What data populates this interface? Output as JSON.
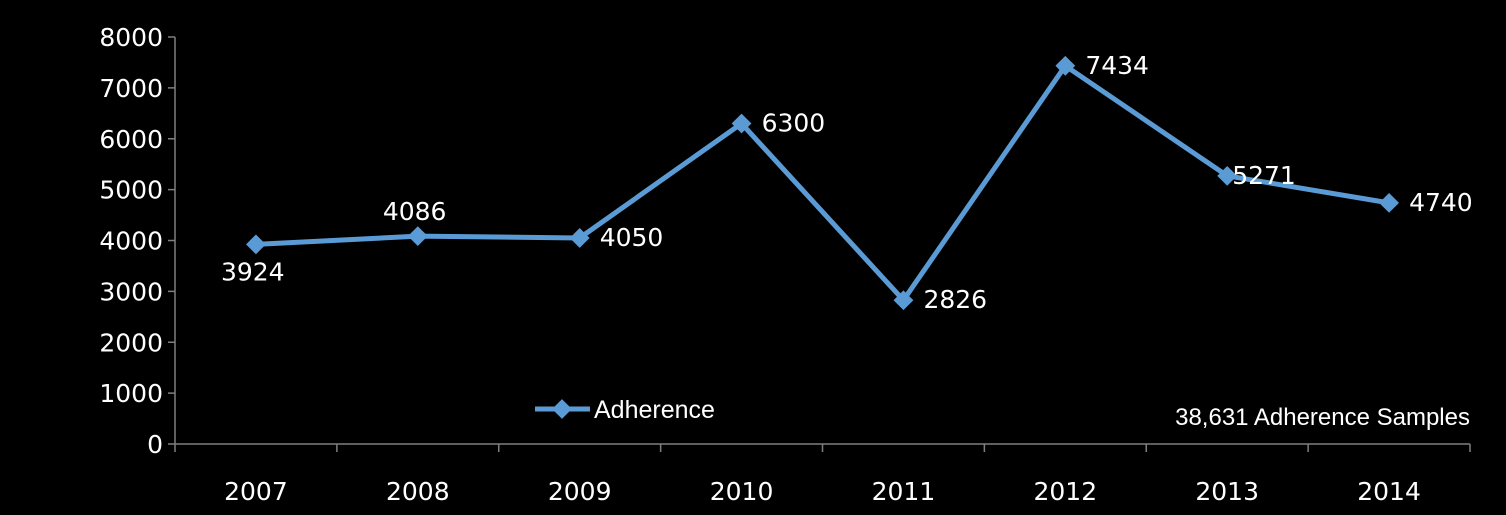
{
  "chart_data": {
    "type": "line",
    "categories": [
      "2007",
      "2008",
      "2009",
      "2010",
      "2011",
      "2012",
      "2013",
      "2014"
    ],
    "series": [
      {
        "name": "Adherence",
        "values": [
          3924,
          4086,
          4050,
          6300,
          2826,
          7434,
          5271,
          4740
        ],
        "data_labels": [
          "3924",
          "4086",
          "4050",
          "6300",
          "2826",
          "7434",
          "5271",
          "4740"
        ],
        "color": "#5B9BD5",
        "marker": "diamond"
      }
    ],
    "ylim": [
      0,
      8000
    ],
    "yticks": [
      0,
      1000,
      2000,
      3000,
      4000,
      5000,
      6000,
      7000,
      8000
    ],
    "ytick_labels": [
      "0",
      "1000",
      "2000",
      "3000",
      "4000",
      "5000",
      "6000",
      "7000",
      "8000"
    ],
    "grid": false,
    "legend": {
      "position": "bottom-center",
      "entries": [
        "Adherence"
      ]
    },
    "annotation": "38,631 Adherence Samples",
    "background": "#000000",
    "axis_color": "#7F7F7F",
    "text_color": "#FFFFFF"
  }
}
